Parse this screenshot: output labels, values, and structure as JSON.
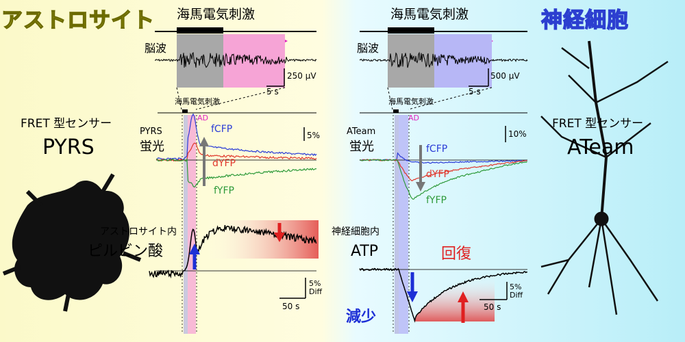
{
  "titles": {
    "astrocyte": "アストロサイト",
    "neuron": "神経細胞"
  },
  "left_panel": {
    "stim_label": "海馬電気刺激",
    "eeg_label": "脳波",
    "ad_label": "AD",
    "eeg_scale": "250 μV",
    "time_scale_eeg": "5 s",
    "stim_small": "海馬電気刺激",
    "ad_small": "AD",
    "sensor_type": "FRET 型センサー",
    "sensor_name": "PYRS",
    "sensor_small": "PYRS",
    "fluor_label": "蛍光",
    "fret_scale": "5%",
    "trace_fcfp": "fCFP",
    "trace_dyfp": "dYFP",
    "trace_fyfp": "fYFP",
    "target_line1": "アストロサイト内",
    "target_line2": "ピルビン酸",
    "diff_scale": "5%",
    "diff_unit": "Diff",
    "time_scale": "50 s"
  },
  "right_panel": {
    "stim_label": "海馬電気刺激",
    "eeg_label": "脳波",
    "ad_label": "AD",
    "eeg_scale": "500 μV",
    "time_scale_eeg": "5 s",
    "stim_small": "海馬電気刺激",
    "ad_small": "AD",
    "sensor_type": "FRET 型センサー",
    "sensor_name": "ATeam",
    "sensor_small": "ATeam",
    "fluor_label": "蛍光",
    "fret_scale": "10%",
    "trace_fcfp": "fCFP",
    "trace_dyfp": "dYFP",
    "trace_fyfp": "fYFP",
    "target_line1": "神経細胞内",
    "target_line2": "ATP",
    "decrease_label": "減少",
    "recovery_label": "回復",
    "diff_scale": "5%",
    "diff_unit": "Diff",
    "time_scale": "50 s"
  },
  "colors": {
    "fcfp": "#2a3cd6",
    "dyfp": "#e0382c",
    "fyfp": "#2e9a3a",
    "ad": "#e020c0",
    "astro_title": "#e8e23a",
    "neuron_title": "#2c3fd0"
  }
}
